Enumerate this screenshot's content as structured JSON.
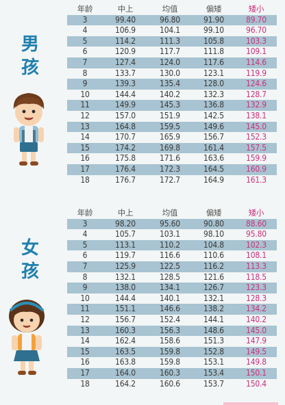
{
  "boys": {
    "title_chars": [
      "男",
      "孩"
    ],
    "headers": [
      "年龄",
      "中上",
      "均值",
      "偏矮",
      "矮小"
    ],
    "rows": [
      [
        "3",
        "99.40",
        "96.80",
        "91.90",
        "89.70"
      ],
      [
        "4",
        "106.9",
        "104.1",
        "99.10",
        "96.70"
      ],
      [
        "5",
        "114.2",
        "111.3",
        "105.8",
        "103.3"
      ],
      [
        "6",
        "120.9",
        "117.7",
        "111.8",
        "109.1"
      ],
      [
        "7",
        "127.4",
        "124.0",
        "117.6",
        "114.6"
      ],
      [
        "8",
        "133.7",
        "130.0",
        "123.1",
        "119.9"
      ],
      [
        "9",
        "139.3",
        "135.4",
        "128.0",
        "124.6"
      ],
      [
        "10",
        "144.4",
        "140.2",
        "132.3",
        "128.7"
      ],
      [
        "11",
        "149.9",
        "145.3",
        "136.8",
        "132.9"
      ],
      [
        "12",
        "157.0",
        "151.9",
        "142.5",
        "138.1"
      ],
      [
        "13",
        "164.8",
        "159.5",
        "149.6",
        "145.0"
      ],
      [
        "14",
        "170.7",
        "165.9",
        "156.7",
        "152.3"
      ],
      [
        "15",
        "174.2",
        "169.8",
        "161.4",
        "157.5"
      ],
      [
        "16",
        "175.8",
        "171.6",
        "163.6",
        "159.9"
      ],
      [
        "17",
        "176.4",
        "172.3",
        "164.5",
        "160.9"
      ],
      [
        "18",
        "176.7",
        "172.7",
        "164.9",
        "161.3"
      ]
    ]
  },
  "girls": {
    "title_chars": [
      "女",
      "孩"
    ],
    "headers": [
      "年龄",
      "中上",
      "均值",
      "偏矮",
      "矮小"
    ],
    "rows": [
      [
        "3",
        "98.20",
        "95.60",
        "90.80",
        "88.60"
      ],
      [
        "4",
        "105.7",
        "103.1",
        "98.10",
        "95.80"
      ],
      [
        "5",
        "113.1",
        "110.2",
        "104.8",
        "102.3"
      ],
      [
        "6",
        "119.7",
        "116.6",
        "110.6",
        "108.1"
      ],
      [
        "7",
        "125.9",
        "122.5",
        "116.2",
        "113.3"
      ],
      [
        "8",
        "132.1",
        "128.5",
        "121.6",
        "118.5"
      ],
      [
        "9",
        "138.0",
        "134.1",
        "126.7",
        "123.3"
      ],
      [
        "10",
        "144.4",
        "140.1",
        "132.1",
        "128.3"
      ],
      [
        "11",
        "151.1",
        "146.6",
        "138.2",
        "134.2"
      ],
      [
        "12",
        "156.7",
        "152.4",
        "144.1",
        "140.2"
      ],
      [
        "13",
        "160.3",
        "156.3",
        "148.6",
        "145.0"
      ],
      [
        "14",
        "162.4",
        "158.6",
        "151.3",
        "147.9"
      ],
      [
        "15",
        "163.5",
        "159.8",
        "152.8",
        "149.5"
      ],
      [
        "16",
        "163.8",
        "159.8",
        "153.1",
        "149.8"
      ],
      [
        "17",
        "164.0",
        "160.3",
        "153.4",
        "150.1"
      ],
      [
        "18",
        "164.2",
        "160.6",
        "153.7",
        "150.4"
      ]
    ]
  },
  "colors": {
    "stripe": "#a8c3d1",
    "title": "#1f7fae",
    "short_value": "#c8327d"
  }
}
